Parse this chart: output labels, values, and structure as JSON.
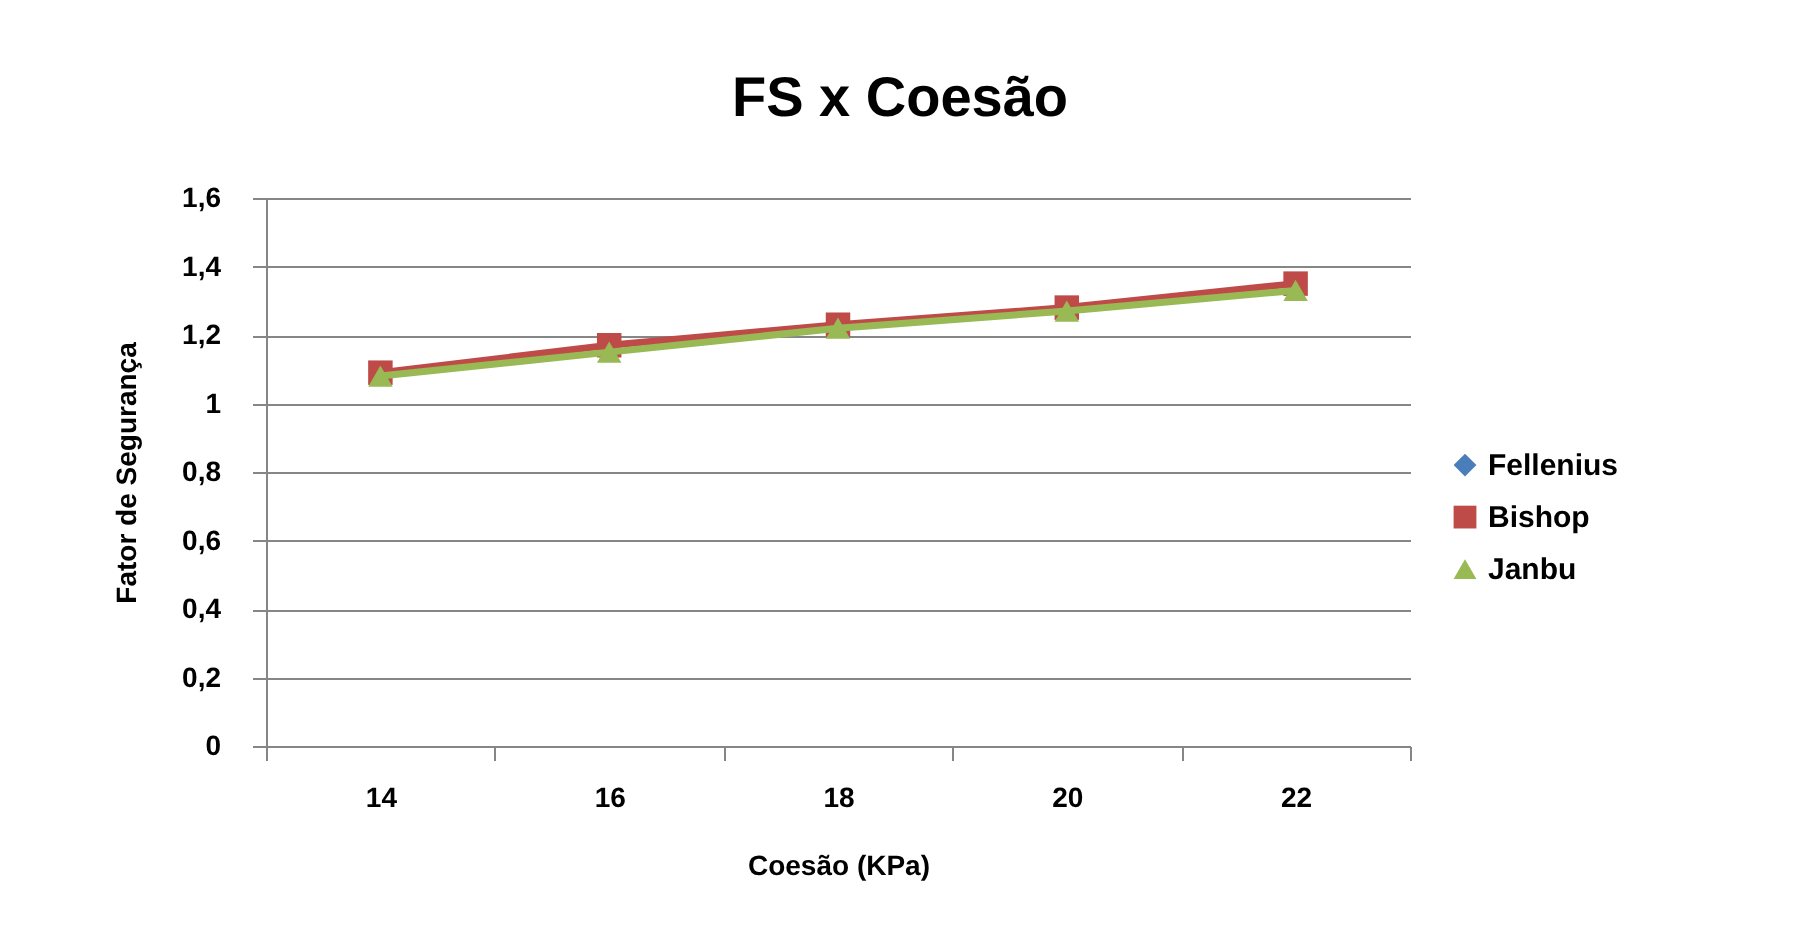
{
  "chart_data": {
    "type": "line",
    "title": "FS x Coesão",
    "xlabel": "Coesão (KPa)",
    "ylabel": "Fator de Segurança",
    "categories": [
      "14",
      "16",
      "18",
      "20",
      "22"
    ],
    "series": [
      {
        "name": "Fellenius",
        "color": "#4a7ebb",
        "marker": "diamond",
        "values": [
          null,
          null,
          null,
          null,
          null
        ]
      },
      {
        "name": "Bishop",
        "color": "#be4b48",
        "marker": "square",
        "values": [
          1.09,
          1.17,
          1.23,
          1.28,
          1.35
        ]
      },
      {
        "name": "Janbu",
        "color": "#98b954",
        "marker": "triangle",
        "values": [
          1.08,
          1.15,
          1.22,
          1.27,
          1.33
        ]
      }
    ],
    "ylim": [
      0,
      1.6
    ],
    "yticks": [
      0,
      {
        "value": 0.2,
        "label": "0,2"
      },
      {
        "value": 0.4,
        "label": "0,4"
      },
      {
        "value": 0.6,
        "label": "0,6"
      },
      {
        "value": 0.8,
        "label": "0,8"
      },
      1,
      {
        "value": 1.2,
        "label": "1,2"
      },
      {
        "value": 1.4,
        "label": "1,4"
      },
      {
        "value": 1.6,
        "label": "1,6"
      }
    ],
    "grid": "y",
    "legend": "right"
  }
}
